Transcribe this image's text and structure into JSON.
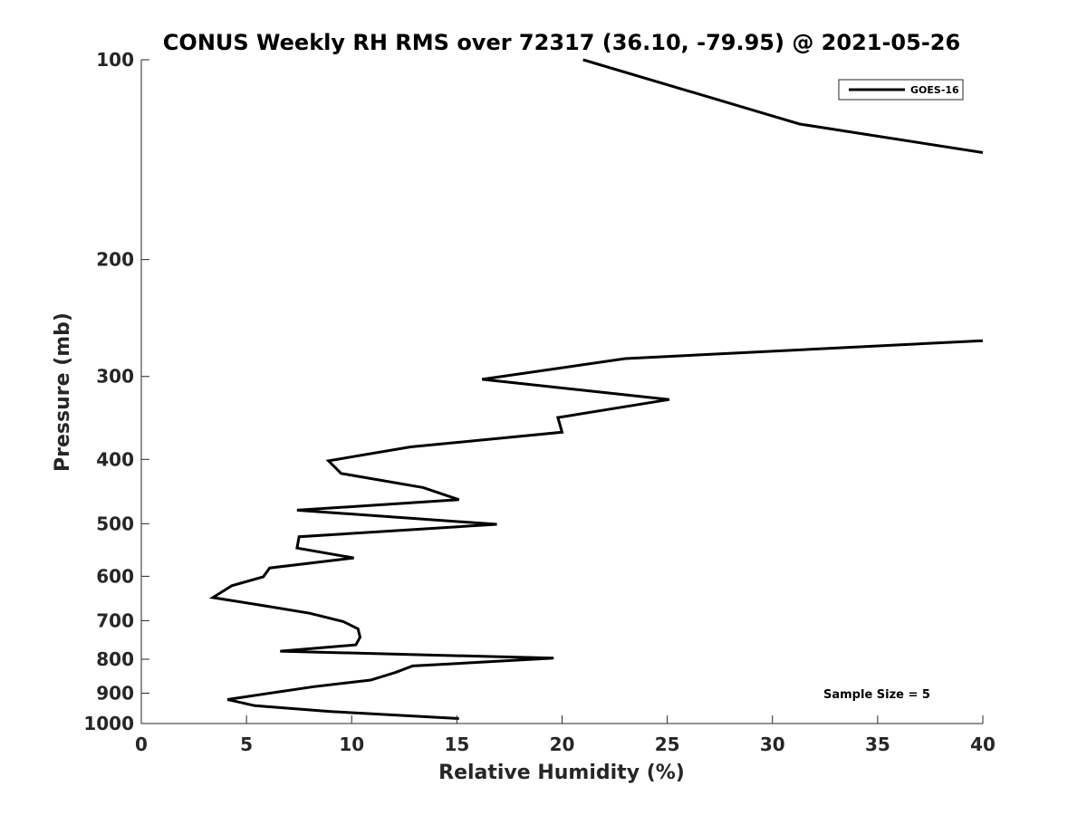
{
  "chart_data": {
    "type": "line",
    "title": "CONUS Weekly RH RMS over 72317 (36.10, -79.95) @ 2021-05-26",
    "xlabel": "Relative Humidity (%)",
    "ylabel": "Pressure (mb)",
    "xlim": [
      0,
      40
    ],
    "ylim": [
      100,
      1000
    ],
    "y_scale": "log",
    "y_reversed": true,
    "x_ticks": [
      "0",
      "5",
      "10",
      "15",
      "20",
      "25",
      "30",
      "35",
      "40"
    ],
    "y_ticks": [
      "100",
      "200",
      "300",
      "400",
      "500",
      "600",
      "700",
      "800",
      "900",
      "1000"
    ],
    "legend_position": "top-right",
    "grid": false,
    "annotation": "Sample Size = 5",
    "series": [
      {
        "name": "GOES-16",
        "color": "#000000",
        "segments": [
          {
            "x": [
              21.0,
              31.3,
              40.0
            ],
            "y": [
              100,
              125,
              138
            ]
          },
          {
            "x": [
              40.0,
              23.0,
              16.2,
              25.1,
              19.8,
              20.0,
              12.8,
              8.9,
              9.5,
              13.4,
              15.1,
              7.4,
              16.9,
              7.5,
              7.4,
              10.1,
              6.1,
              5.8,
              4.3,
              3.4,
              5.9,
              8.0,
              9.6,
              10.3,
              10.4,
              10.2,
              6.6,
              19.6,
              12.9,
              12.1,
              10.9,
              8.2,
              5.9,
              4.1,
              5.4,
              9.0,
              15.1
            ],
            "y": [
              265,
              282,
              303,
              325,
              346,
              364,
              383,
              402,
              420,
              441,
              460,
              477,
              501,
              523,
              544,
              563,
              583,
              601,
              620,
              646,
              665,
              682,
              702,
              720,
              741,
              761,
              778,
              797,
              819,
              837,
              860,
              880,
              902,
              920,
              940,
              959,
              983
            ]
          }
        ]
      }
    ]
  }
}
